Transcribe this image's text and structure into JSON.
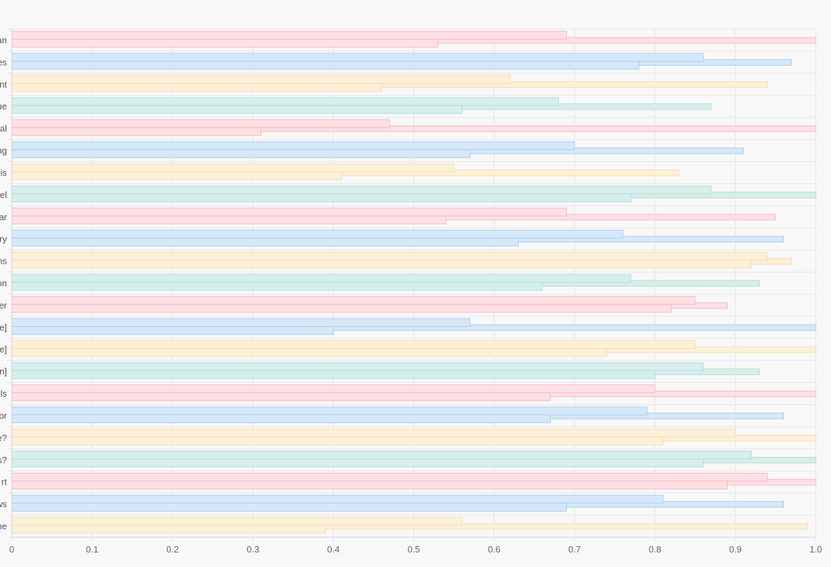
{
  "chart_data": {
    "type": "bar",
    "orientation": "horizontal",
    "title": "",
    "xlabel": "",
    "ylabel": "",
    "xlim": [
      0,
      1.0
    ],
    "grid": true,
    "legend": "none",
    "x_ticks": [
      "0",
      "0.1",
      "0.2",
      "0.3",
      "0.4",
      "0.5",
      "0.6",
      "0.7",
      "0.8",
      "0.9",
      "1.0"
    ],
    "categories": [
      "an",
      "es",
      "nt",
      "ue",
      "al",
      "ng",
      "is",
      "el",
      "ar",
      "ry",
      "ns",
      "on",
      "er",
      "e]",
      "e]",
      "n]",
      "ls",
      "or",
      "e?",
      "s?",
      "rt",
      "ws",
      "ne"
    ],
    "series": [
      {
        "values": [
          0.69,
          0.86,
          0.62,
          0.68,
          0.47,
          0.7,
          0.55,
          0.87,
          0.69,
          0.76,
          0.94,
          0.77,
          0.85,
          0.57,
          0.85,
          0.86,
          0.8,
          0.79,
          0.9,
          0.92,
          0.94,
          0.81,
          0.56
        ]
      },
      {
        "values": [
          1.0,
          0.97,
          0.94,
          0.87,
          1.0,
          0.91,
          0.83,
          1.0,
          0.95,
          0.96,
          0.97,
          0.93,
          0.89,
          1.0,
          1.0,
          0.93,
          1.0,
          0.96,
          1.0,
          1.0,
          1.0,
          0.96,
          0.99
        ]
      },
      {
        "values": [
          0.53,
          0.78,
          0.46,
          0.56,
          0.31,
          0.57,
          0.41,
          0.77,
          0.54,
          0.63,
          0.92,
          0.66,
          0.82,
          0.4,
          0.74,
          0.8,
          0.67,
          0.67,
          0.81,
          0.86,
          0.89,
          0.69,
          0.39
        ]
      }
    ],
    "colors": [
      {
        "fill": "#fde0e4",
        "stroke": "#f7b8c3"
      },
      {
        "fill": "#d6e7f8",
        "stroke": "#a9cdf0"
      },
      {
        "fill": "#fdf0d8",
        "stroke": "#f6ddb0"
      },
      {
        "fill": "#d7eeeb",
        "stroke": "#ade0da"
      }
    ]
  }
}
